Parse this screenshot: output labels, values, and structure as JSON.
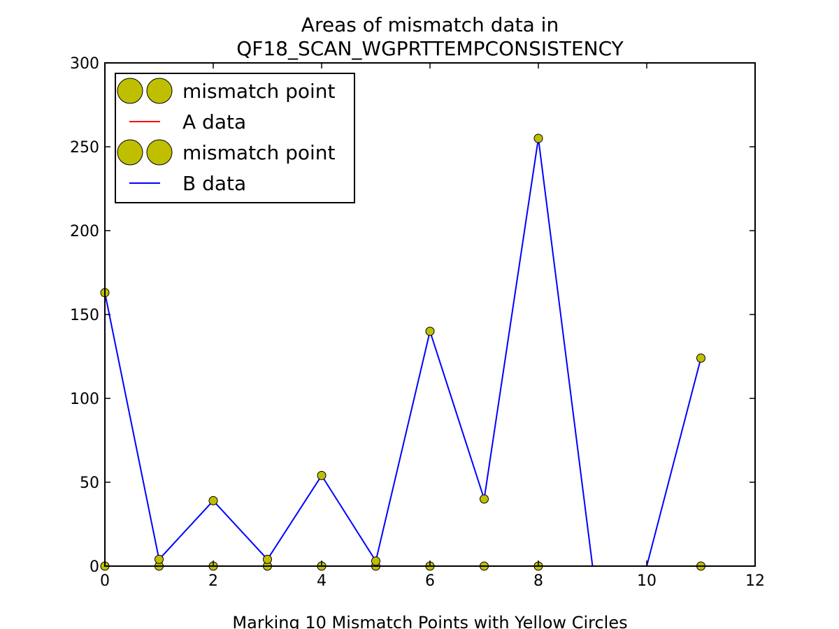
{
  "chart_data": {
    "type": "line",
    "title_lines": [
      "Areas of mismatch data in",
      "QF18_SCAN_WGPRTTEMPCONSISTENCY"
    ],
    "xlabel": "Marking 10 Mismatch Points with Yellow Circles",
    "ylabel": "",
    "xlim": [
      0,
      12
    ],
    "ylim": [
      0,
      300
    ],
    "xticks": [
      0,
      2,
      4,
      6,
      8,
      10,
      12
    ],
    "yticks": [
      0,
      50,
      100,
      150,
      200,
      250,
      300
    ],
    "x_tick_labels": [
      "0",
      "2",
      "4",
      "6",
      "8",
      "10",
      "12"
    ],
    "y_tick_labels": [
      "0",
      "50",
      "100",
      "150",
      "200",
      "250",
      "300"
    ],
    "grid": false,
    "legend_position": "top-left",
    "legend": [
      {
        "label": "mismatch point",
        "kind": "marker",
        "color": "#bfbf00"
      },
      {
        "label": "A data",
        "kind": "line",
        "color": "#ff0000"
      },
      {
        "label": "mismatch point",
        "kind": "marker",
        "color": "#bfbf00"
      },
      {
        "label": "B data",
        "kind": "line",
        "color": "#0000ff"
      }
    ],
    "series": [
      {
        "key": "A data",
        "color": "#ff0000",
        "x": [
          0,
          1,
          2,
          3,
          4,
          5,
          6,
          7,
          8,
          9,
          10,
          11
        ],
        "values": [
          0,
          0,
          0,
          0,
          0,
          0,
          0,
          0,
          0,
          0,
          0,
          0
        ]
      },
      {
        "key": "B data",
        "color": "#0000ff",
        "x": [
          0,
          1,
          2,
          3,
          4,
          5,
          6,
          7,
          8,
          9,
          10,
          11
        ],
        "values": [
          163,
          4,
          39,
          4,
          54,
          3,
          140,
          40,
          255,
          0,
          0,
          124
        ]
      }
    ],
    "mismatch_points": [
      {
        "key": "A data",
        "color": "#bfbf00",
        "x": [
          0,
          1,
          2,
          3,
          4,
          5,
          6,
          7,
          8,
          11
        ],
        "values": [
          0,
          0,
          0,
          0,
          0,
          0,
          0,
          0,
          0,
          0
        ]
      },
      {
        "key": "B data",
        "color": "#bfbf00",
        "x": [
          0,
          1,
          2,
          3,
          4,
          5,
          6,
          7,
          8,
          11
        ],
        "values": [
          163,
          4,
          39,
          4,
          54,
          3,
          140,
          40,
          255,
          124
        ]
      }
    ]
  }
}
